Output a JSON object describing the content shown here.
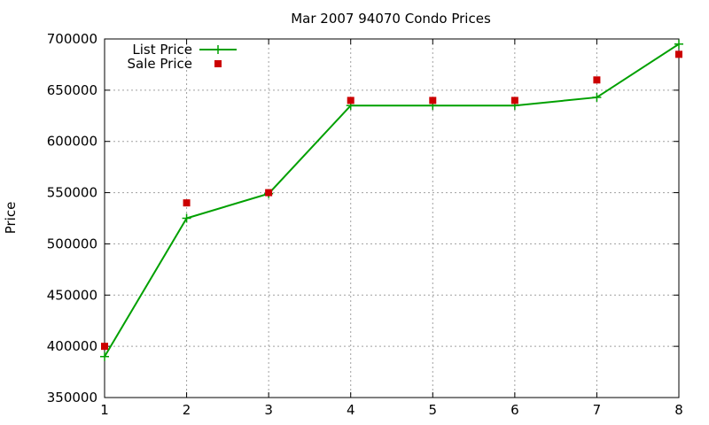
{
  "chart_data": {
    "type": "line",
    "title": "Mar 2007 94070 Condo Prices",
    "xlabel": "",
    "ylabel": "Price",
    "x": [
      1,
      2,
      3,
      4,
      5,
      6,
      7,
      8
    ],
    "xlim": [
      1,
      8
    ],
    "ylim": [
      350000,
      700000
    ],
    "xticks": [
      1,
      2,
      3,
      4,
      5,
      6,
      7,
      8
    ],
    "yticks": [
      350000,
      400000,
      450000,
      500000,
      550000,
      600000,
      650000,
      700000
    ],
    "grid": true,
    "legend_position": "top-left",
    "series": [
      {
        "name": "List Price",
        "style": "line+cross",
        "color": "#00a000",
        "values": [
          390000,
          525000,
          549000,
          635000,
          635000,
          635000,
          643000,
          695000
        ]
      },
      {
        "name": "Sale Price",
        "style": "square-points",
        "color": "#cc0000",
        "values": [
          400000,
          540000,
          550000,
          640000,
          640000,
          640000,
          660000,
          685000
        ]
      }
    ]
  }
}
